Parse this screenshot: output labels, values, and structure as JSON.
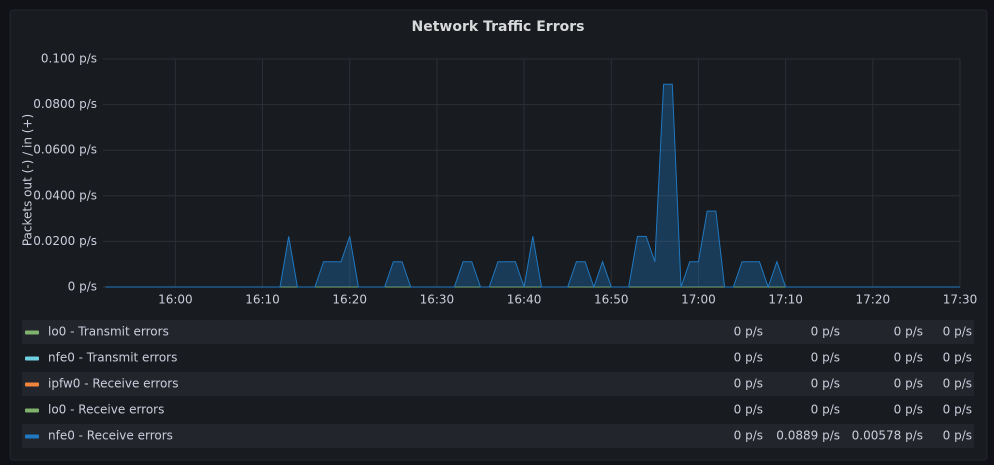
{
  "chart_data": {
    "type": "area",
    "title": "Network Traffic Errors",
    "y_label": "Packets out (-) / in (+)",
    "x": [
      952,
      953,
      954,
      955,
      956,
      957,
      958,
      959,
      960,
      961,
      962,
      963,
      964,
      965,
      966,
      967,
      968,
      969,
      970,
      971,
      972,
      973,
      974,
      975,
      976,
      977,
      978,
      979,
      980,
      981,
      982,
      983,
      984,
      985,
      986,
      987,
      988,
      989,
      990,
      991,
      992,
      993,
      994,
      995,
      996,
      997,
      998,
      999,
      1000,
      1001,
      1002,
      1003,
      1004,
      1005,
      1006,
      1007,
      1008,
      1009,
      1010,
      1011,
      1012,
      1013,
      1014,
      1015,
      1016,
      1017,
      1018,
      1019,
      1020,
      1021,
      1022,
      1023,
      1024,
      1025,
      1026,
      1027,
      1028,
      1029,
      1030,
      1031,
      1032,
      1033,
      1034,
      1035,
      1036,
      1037,
      1038,
      1039,
      1040,
      1041,
      1042,
      1043,
      1044,
      1045,
      1046,
      1047,
      1048,
      1049,
      1050
    ],
    "xlim": [
      951.7,
      1050
    ],
    "xticks": [
      {
        "value": 960,
        "label": "16:00"
      },
      {
        "value": 970,
        "label": "16:10"
      },
      {
        "value": 980,
        "label": "16:20"
      },
      {
        "value": 990,
        "label": "16:30"
      },
      {
        "value": 1000,
        "label": "16:40"
      },
      {
        "value": 1010,
        "label": "16:50"
      },
      {
        "value": 1020,
        "label": "17:00"
      },
      {
        "value": 1030,
        "label": "17:10"
      },
      {
        "value": 1040,
        "label": "17:20"
      },
      {
        "value": 1050,
        "label": "17:30"
      }
    ],
    "ylim": [
      0,
      0.1
    ],
    "yticks": [
      {
        "value": 0,
        "label": "0 p/s"
      },
      {
        "value": 0.02,
        "label": "0.0200 p/s"
      },
      {
        "value": 0.04,
        "label": "0.0400 p/s"
      },
      {
        "value": 0.06,
        "label": "0.0600 p/s"
      },
      {
        "value": 0.08,
        "label": "0.0800 p/s"
      },
      {
        "value": 0.1,
        "label": "0.100 p/s"
      }
    ],
    "grid": true,
    "series": [
      {
        "name": "lo0 - Transmit errors",
        "color": "#7eb26d",
        "stats": [
          "0 p/s",
          "0 p/s",
          "0 p/s",
          "0 p/s"
        ],
        "values": [
          0,
          0,
          0,
          0,
          0,
          0,
          0,
          0,
          0,
          0,
          0,
          0,
          0,
          0,
          0,
          0,
          0,
          0,
          0,
          0,
          0,
          0,
          0,
          0,
          0,
          0,
          0,
          0,
          0,
          0,
          0,
          0,
          0,
          0,
          0,
          0,
          0,
          0,
          0,
          0,
          0,
          0,
          0,
          0,
          0,
          0,
          0,
          0,
          0,
          0,
          0,
          0,
          0,
          0,
          0,
          0,
          0,
          0,
          0,
          0,
          0,
          0,
          0,
          0,
          0,
          0,
          0,
          0,
          0,
          0,
          0,
          0,
          0,
          0,
          0,
          0,
          0,
          0,
          0,
          0,
          0,
          0,
          0,
          0,
          0,
          0,
          0,
          0,
          0,
          0,
          0,
          0,
          0,
          0,
          0,
          0,
          0,
          0,
          0
        ]
      },
      {
        "name": "nfe0 - Transmit errors",
        "color": "#6ed0e0",
        "stats": [
          "0 p/s",
          "0 p/s",
          "0 p/s",
          "0 p/s"
        ],
        "values": [
          0,
          0,
          0,
          0,
          0,
          0,
          0,
          0,
          0,
          0,
          0,
          0,
          0,
          0,
          0,
          0,
          0,
          0,
          0,
          0,
          0,
          0,
          0,
          0,
          0,
          0,
          0,
          0,
          0,
          0,
          0,
          0,
          0,
          0,
          0,
          0,
          0,
          0,
          0,
          0,
          0,
          0,
          0,
          0,
          0,
          0,
          0,
          0,
          0,
          0,
          0,
          0,
          0,
          0,
          0,
          0,
          0,
          0,
          0,
          0,
          0,
          0,
          0,
          0,
          0,
          0,
          0,
          0,
          0,
          0,
          0,
          0,
          0,
          0,
          0,
          0,
          0,
          0,
          0,
          0,
          0,
          0,
          0,
          0,
          0,
          0,
          0,
          0,
          0,
          0,
          0,
          0,
          0,
          0,
          0,
          0,
          0,
          0,
          0
        ]
      },
      {
        "name": "ipfw0 - Receive errors",
        "color": "#ef843c",
        "stats": [
          "0 p/s",
          "0 p/s",
          "0 p/s",
          "0 p/s"
        ],
        "values": [
          0,
          0,
          0,
          0,
          0,
          0,
          0,
          0,
          0,
          0,
          0,
          0,
          0,
          0,
          0,
          0,
          0,
          0,
          0,
          0,
          0,
          0,
          0,
          0,
          0,
          0,
          0,
          0,
          0,
          0,
          0,
          0,
          0,
          0,
          0,
          0,
          0,
          0,
          0,
          0,
          0,
          0,
          0,
          0,
          0,
          0,
          0,
          0,
          0,
          0,
          0,
          0,
          0,
          0,
          0,
          0,
          0,
          0,
          0,
          0,
          0,
          0,
          0,
          0,
          0,
          0,
          0,
          0,
          0,
          0,
          0,
          0,
          0,
          0,
          0,
          0,
          0,
          0,
          0,
          0,
          0,
          0,
          0,
          0,
          0,
          0,
          0,
          0,
          0,
          0,
          0,
          0,
          0,
          0,
          0,
          0,
          0,
          0,
          0
        ]
      },
      {
        "name": "lo0 - Receive errors",
        "color": "#7eb26d",
        "stats": [
          "0 p/s",
          "0 p/s",
          "0 p/s",
          "0 p/s"
        ],
        "values": [
          0,
          0,
          0,
          0,
          0,
          0,
          0,
          0,
          0,
          0,
          0,
          0,
          0,
          0,
          0,
          0,
          0,
          0,
          0,
          0,
          0,
          0,
          0,
          0,
          0,
          0,
          0,
          0,
          0,
          0,
          0,
          0,
          0,
          0,
          0,
          0,
          0,
          0,
          0,
          0,
          0,
          0,
          0,
          0,
          0,
          0,
          0,
          0,
          0,
          0,
          0,
          0,
          0,
          0,
          0,
          0,
          0,
          0,
          0,
          0,
          0,
          0,
          0,
          0,
          0,
          0,
          0,
          0,
          0,
          0,
          0,
          0,
          0,
          0,
          0,
          0,
          0,
          0,
          0,
          0,
          0,
          0,
          0,
          0,
          0,
          0,
          0,
          0,
          0,
          0,
          0,
          0,
          0,
          0,
          0,
          0,
          0,
          0,
          0
        ]
      },
      {
        "name": "nfe0 - Receive errors",
        "color": "#1f78c1",
        "stats": [
          "0 p/s",
          "0.0889 p/s",
          "0.00578 p/s",
          "0 p/s"
        ],
        "values": [
          0,
          0,
          0,
          0,
          0,
          0,
          0,
          0,
          0,
          0,
          0,
          0,
          0,
          0,
          0,
          0,
          0,
          0,
          0,
          0,
          0,
          0.0222,
          0,
          0,
          0,
          0.0111,
          0.0111,
          0.0111,
          0.0222,
          0,
          0,
          0,
          0,
          0.0111,
          0.0111,
          0,
          0,
          0,
          0,
          0,
          0,
          0.0111,
          0.0111,
          0,
          0,
          0.0111,
          0.0111,
          0.0111,
          0,
          0.0222,
          0,
          0,
          0,
          0,
          0.0111,
          0.0111,
          0,
          0.0111,
          0,
          0,
          0,
          0.0222,
          0.0222,
          0.0111,
          0.0889,
          0.0889,
          0,
          0.0111,
          0.0111,
          0.0333,
          0.0333,
          0,
          0,
          0.0111,
          0.0111,
          0.0111,
          0,
          0.0111,
          0,
          0,
          0,
          0,
          0,
          0,
          0,
          0,
          0,
          0,
          0,
          0,
          0,
          0,
          0,
          0,
          0,
          0,
          0,
          0,
          0
        ]
      }
    ]
  }
}
